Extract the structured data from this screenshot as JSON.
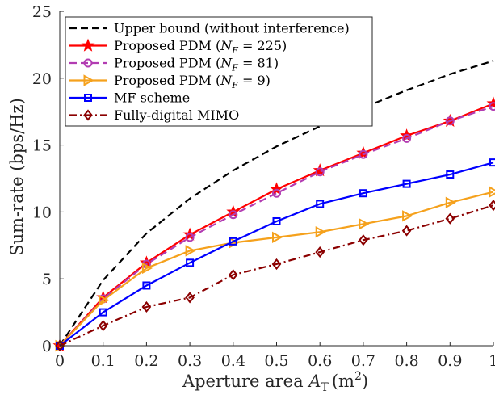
{
  "chart_data": {
    "type": "line",
    "xlabel": "Aperture area",
    "xlabel_symbol": "A",
    "xlabel_subscript": "T",
    "xlabel_unit": "(m",
    "xlabel_unit_exp": "2",
    "xlabel_unit_close": ")",
    "ylabel": "Sum-rate (bps/Hz)",
    "xlim": [
      0,
      1
    ],
    "ylim": [
      0,
      25
    ],
    "x_ticks": [
      0,
      0.1,
      0.2,
      0.3,
      0.4,
      0.5,
      0.6,
      0.7,
      0.8,
      0.9,
      1
    ],
    "y_ticks": [
      0,
      5,
      10,
      15,
      20,
      25
    ],
    "grid": false,
    "legend_position": "top-left",
    "x": [
      0,
      0.1,
      0.2,
      0.3,
      0.4,
      0.5,
      0.6,
      0.7,
      0.8,
      0.9,
      1
    ],
    "series": [
      {
        "name": "Upper bound (without interference)",
        "legend_parts": [
          "Upper bound (without interference)"
        ],
        "color": "#000000",
        "dash": "dashed",
        "marker": "none",
        "values": [
          0,
          4.9,
          8.4,
          11.0,
          13.1,
          14.9,
          16.4,
          17.8,
          19.1,
          20.3,
          21.3
        ]
      },
      {
        "name": "Proposed PDM (N_F = 225)",
        "legend_parts": [
          "Proposed PDM (",
          "N",
          "F",
          " = 225)"
        ],
        "color": "#ff0000",
        "dash": "solid",
        "marker": "star",
        "values": [
          0,
          3.6,
          6.2,
          8.3,
          10.0,
          11.7,
          13.1,
          14.4,
          15.7,
          16.8,
          18.1
        ]
      },
      {
        "name": "Proposed PDM (N_F = 81)",
        "legend_parts": [
          "Proposed PDM (",
          "N",
          "F",
          " = 81)"
        ],
        "color": "#b23cb2",
        "dash": "dashed",
        "marker": "circle",
        "values": [
          0,
          3.5,
          6.1,
          8.1,
          9.8,
          11.4,
          13.0,
          14.3,
          15.5,
          16.8,
          17.9
        ]
      },
      {
        "name": "Proposed PDM (N_F = 9)",
        "legend_parts": [
          "Proposed PDM (",
          "N",
          "F",
          " = 9)"
        ],
        "color": "#f5a11c",
        "dash": "solid",
        "marker": "triangle-right",
        "values": [
          0,
          3.4,
          5.8,
          7.1,
          7.7,
          8.1,
          8.5,
          9.1,
          9.7,
          10.7,
          11.5
        ]
      },
      {
        "name": "MF scheme",
        "legend_parts": [
          "MF scheme"
        ],
        "color": "#0000ff",
        "dash": "solid",
        "marker": "square",
        "values": [
          0,
          2.5,
          4.5,
          6.2,
          7.8,
          9.3,
          10.6,
          11.4,
          12.1,
          12.8,
          13.7
        ]
      },
      {
        "name": "Fully-digital MIMO",
        "legend_parts": [
          "Fully-digital MIMO"
        ],
        "color": "#8b0000",
        "dash": "dashdot",
        "marker": "diamond",
        "values": [
          0,
          1.5,
          2.9,
          3.6,
          5.3,
          6.1,
          7.0,
          7.9,
          8.6,
          9.5,
          10.5
        ]
      }
    ]
  }
}
